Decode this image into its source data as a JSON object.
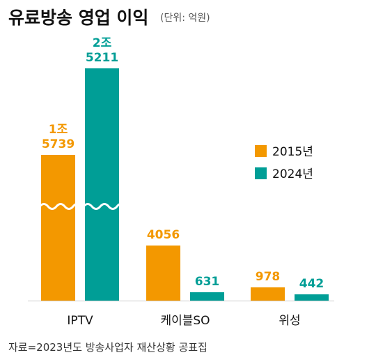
{
  "title": "유료방송 영업 이익",
  "unit_note": "(단위: 억원)",
  "source": "자료=2023년도 방송사업자 재산상황 공표집",
  "colors": {
    "s2015": "#F39800",
    "s2024": "#009E96",
    "baseline": "#cccccc"
  },
  "chart_data": {
    "type": "bar",
    "categories": [
      "IPTV",
      "케이블SO",
      "위성"
    ],
    "series": [
      {
        "name": "2015년",
        "values": [
          15739,
          4056,
          978
        ],
        "labels": [
          "1조\n5739",
          "4056",
          "978"
        ]
      },
      {
        "name": "2024년",
        "values": [
          25211,
          631,
          442
        ],
        "labels": [
          "2조\n5211",
          "631",
          "442"
        ]
      }
    ],
    "axis_break": true,
    "legend_position": "right",
    "grid": false
  }
}
